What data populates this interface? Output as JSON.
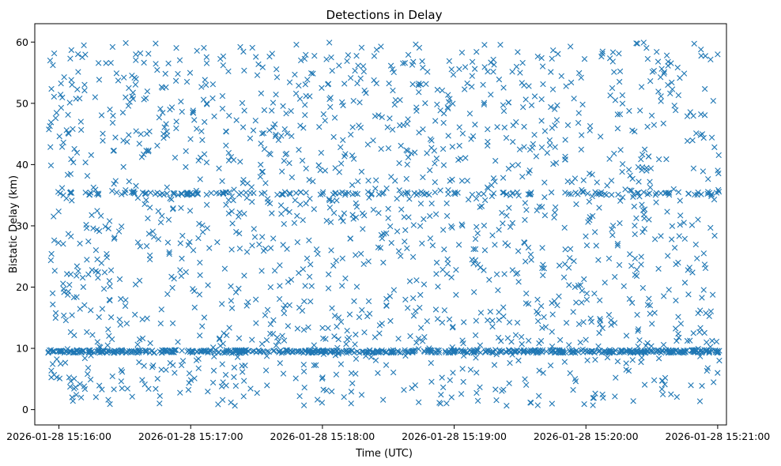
{
  "chart_data": {
    "type": "scatter",
    "title": "Detections in Delay",
    "xlabel": "Time (UTC)",
    "ylabel": "Bistatic Delay (km)",
    "marker": "x",
    "color": "#1f77b4",
    "xlim_seconds_after_15_15_00": [
      49,
      364
    ],
    "ylim": [
      -2.5,
      63
    ],
    "x_ticks": [
      {
        "seconds": 60,
        "label": "2026-01-28 15:16:00"
      },
      {
        "seconds": 120,
        "label": "2026-01-28 15:17:00"
      },
      {
        "seconds": 180,
        "label": "2026-01-28 15:18:00"
      },
      {
        "seconds": 240,
        "label": "2026-01-28 15:19:00"
      },
      {
        "seconds": 300,
        "label": "2026-01-28 15:20:00"
      },
      {
        "seconds": 360,
        "label": "2026-01-28 15:21:00"
      }
    ],
    "y_ticks": [
      {
        "value": 0,
        "label": "0"
      },
      {
        "value": 10,
        "label": "10"
      },
      {
        "value": 20,
        "label": "20"
      },
      {
        "value": 30,
        "label": "30"
      },
      {
        "value": 40,
        "label": "40"
      },
      {
        "value": 50,
        "label": "50"
      },
      {
        "value": 60,
        "label": "60"
      }
    ],
    "series": [
      {
        "name": "detections",
        "time_range_seconds": [
          55,
          361
        ],
        "delay_range_km": [
          0.5,
          60
        ],
        "point_count_estimate": 2400,
        "dense_bands_km": [
          9.5,
          35.3
        ],
        "sample_points": [
          [
            56,
            57
          ],
          [
            58,
            9.5
          ],
          [
            62,
            35
          ],
          [
            66,
            2
          ],
          [
            70,
            47
          ],
          [
            75,
            9.5
          ],
          [
            83,
            21
          ],
          [
            90,
            35.4
          ],
          [
            95,
            58
          ],
          [
            100,
            9.5
          ],
          [
            110,
            31
          ],
          [
            120,
            9.5
          ],
          [
            127,
            53
          ],
          [
            135,
            35.3
          ],
          [
            148,
            9.5
          ],
          [
            160,
            44
          ],
          [
            172,
            9.5
          ],
          [
            184,
            26
          ],
          [
            196,
            35.2
          ],
          [
            208,
            9.5
          ],
          [
            220,
            12
          ],
          [
            232,
            41
          ],
          [
            245,
            9.5
          ],
          [
            258,
            35.3
          ],
          [
            270,
            55
          ],
          [
            282,
            9.5
          ],
          [
            295,
            20
          ],
          [
            306,
            35.3
          ],
          [
            318,
            9.5
          ],
          [
            330,
            48
          ],
          [
            342,
            24
          ],
          [
            355,
            9.5
          ],
          [
            360,
            58
          ]
        ]
      }
    ]
  }
}
